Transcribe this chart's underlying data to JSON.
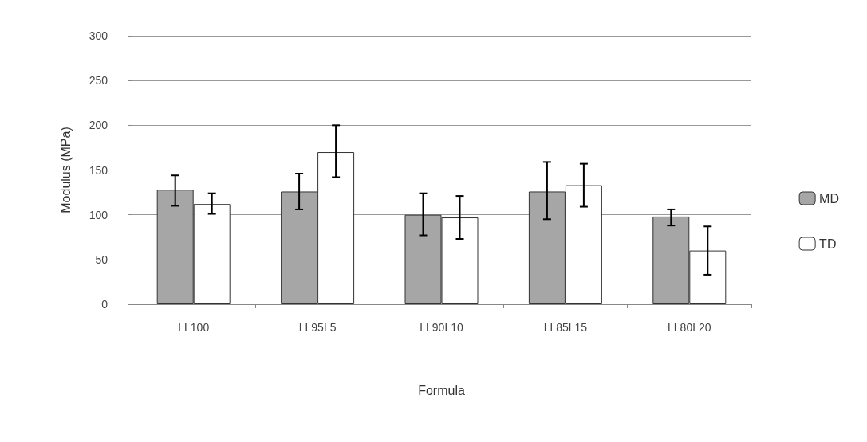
{
  "chart_data": {
    "type": "bar",
    "xlabel": "Formula",
    "ylabel": "Modulus (MPa)",
    "categories": [
      "LL100",
      "LL95L5",
      "LL90L10",
      "LL85L15",
      "LL80L20"
    ],
    "series": [
      {
        "name": "MD",
        "color": "#a6a6a6",
        "values": [
          128,
          126,
          100,
          126,
          98
        ],
        "errors": [
          [
            110,
            144
          ],
          [
            106,
            146
          ],
          [
            77,
            124
          ],
          [
            95,
            159
          ],
          [
            88,
            106
          ]
        ]
      },
      {
        "name": "TD",
        "color": "#ffffff",
        "values": [
          112,
          170,
          97,
          133,
          60
        ],
        "errors": [
          [
            101,
            124
          ],
          [
            142,
            200
          ],
          [
            73,
            121
          ],
          [
            109,
            157
          ],
          [
            33,
            87
          ]
        ]
      }
    ],
    "ylim": [
      0,
      300
    ],
    "yticks": [
      0,
      50,
      100,
      150,
      200,
      250,
      300
    ],
    "grid": "y",
    "legend": "right"
  }
}
